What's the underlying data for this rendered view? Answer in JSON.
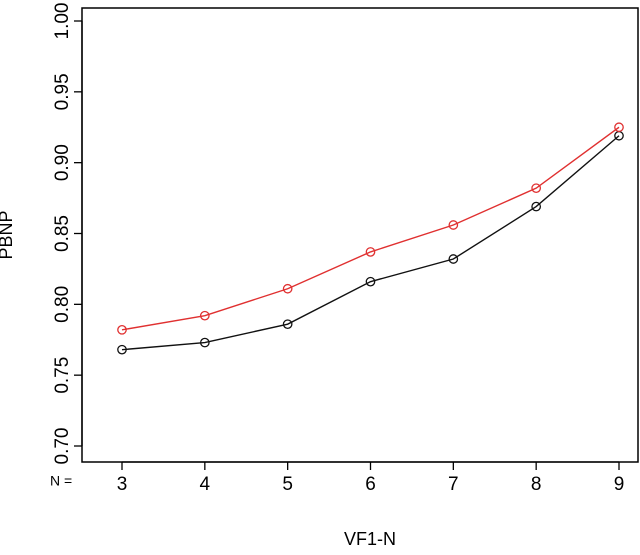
{
  "chart_data": {
    "type": "line",
    "title": "",
    "xlabel": "VF1-N",
    "ylabel": "PBNP",
    "x_prefix_label": "N =",
    "x": [
      3,
      4,
      5,
      6,
      7,
      8,
      9
    ],
    "xlim": [
      3,
      9
    ],
    "ylim": [
      0.7,
      1.0
    ],
    "yticks": [
      "0.70",
      "0.75",
      "0.80",
      "0.85",
      "0.90",
      "0.95",
      "1.00"
    ],
    "xticks": [
      "3",
      "4",
      "5",
      "6",
      "7",
      "8",
      "9"
    ],
    "grid": false,
    "legend": "none",
    "series": [
      {
        "color": "#111111",
        "marker": "open-circle",
        "values": [
          0.768,
          0.773,
          0.786,
          0.816,
          0.832,
          0.869,
          0.919
        ]
      },
      {
        "color": "#e03030",
        "marker": "open-circle",
        "values": [
          0.782,
          0.792,
          0.811,
          0.837,
          0.856,
          0.882,
          0.925
        ]
      }
    ]
  }
}
